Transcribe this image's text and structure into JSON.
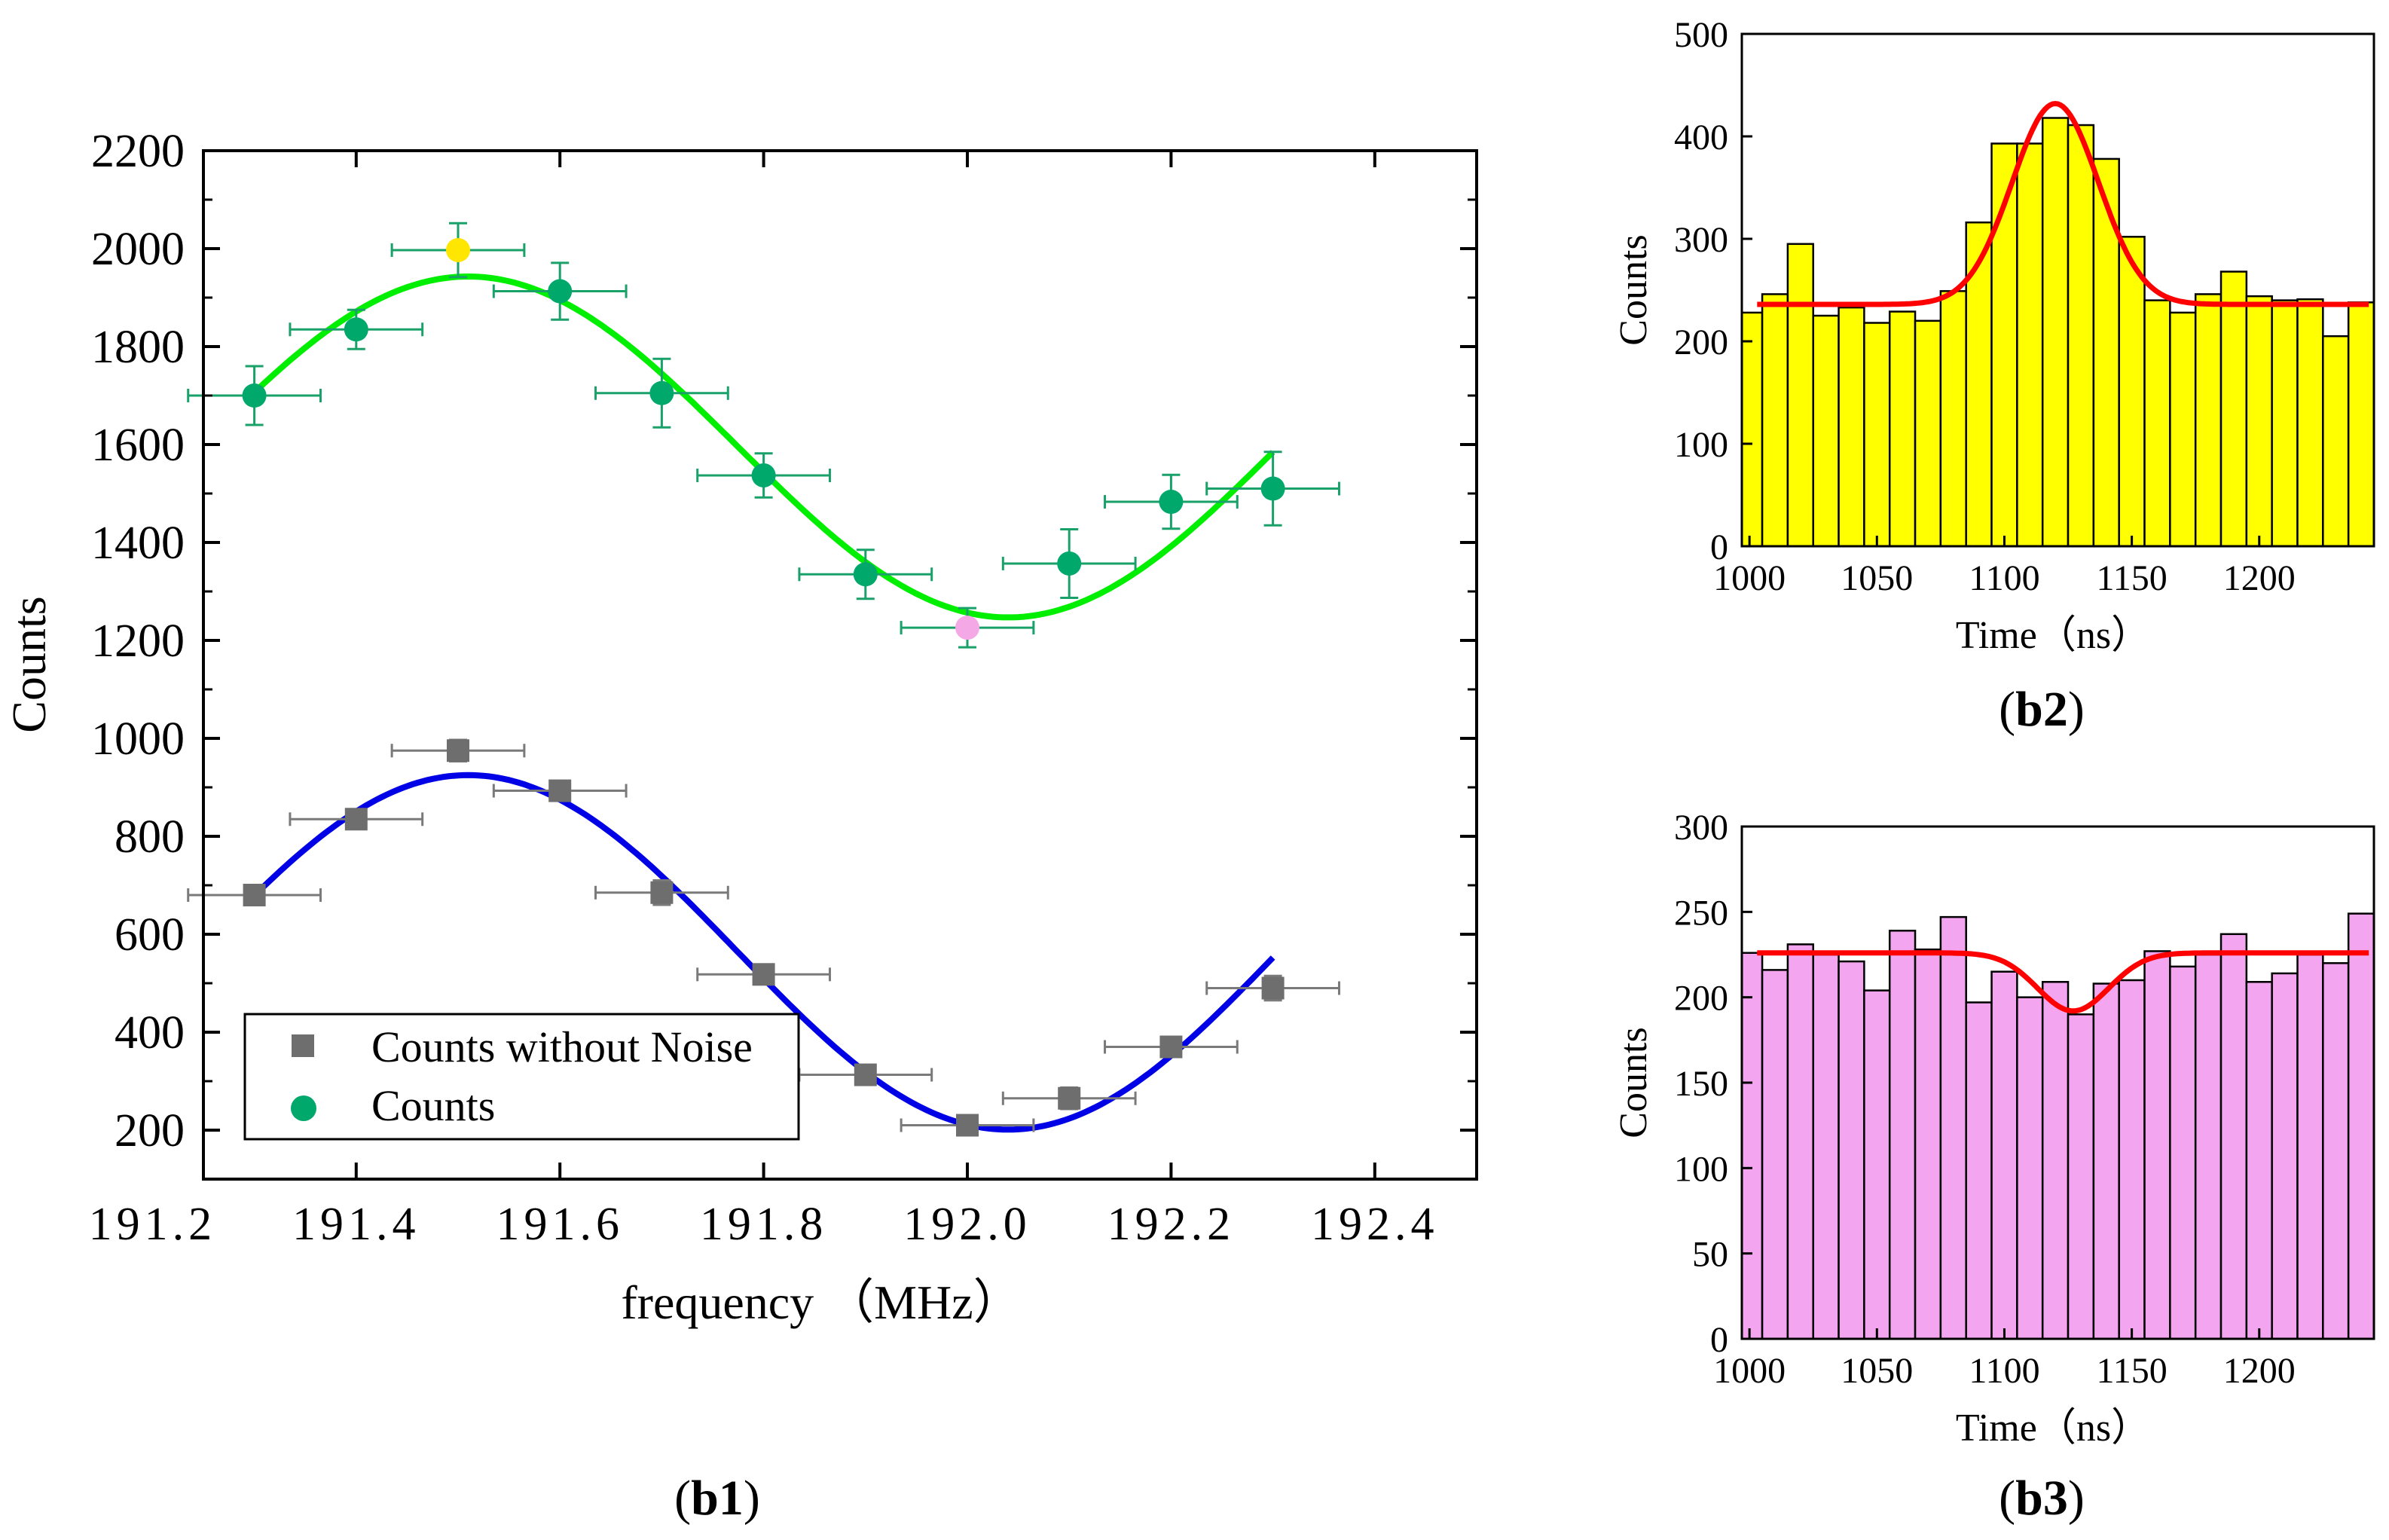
{
  "chart_data": [
    {
      "type": "scatter",
      "panel_label": {
        "open": "(",
        "bold": "b1",
        "close": ")"
      },
      "xlabel": "frequency （MHz）",
      "ylabel": "Counts",
      "xlim": [
        191.25,
        192.5
      ],
      "ylim": [
        100,
        2200
      ],
      "xticks": [
        191.2,
        191.4,
        191.6,
        191.8,
        192.0,
        192.2,
        192.4
      ],
      "xtick_labels": [
        "191.2",
        "191.4",
        "191.6",
        "191.8",
        "192.0",
        "192.2",
        "192.4"
      ],
      "yticks": [
        200,
        400,
        600,
        800,
        1000,
        1200,
        1400,
        1600,
        1800,
        2000,
        2200
      ],
      "ytick_labels": [
        "200",
        "400",
        "600",
        "800",
        "1000",
        "1200",
        "1400",
        "1600",
        "1800",
        "2000",
        "2200"
      ],
      "grid": false,
      "legend": "bottom-left",
      "series": [
        {
          "name": "Counts without Noise",
          "marker": "square",
          "color": "#6e6e6e",
          "x": [
            191.3,
            191.4,
            191.5,
            191.6,
            191.7,
            191.8,
            191.9,
            192.0,
            192.1,
            192.2,
            192.3
          ],
          "y": [
            680,
            835,
            975,
            893,
            685,
            518,
            313,
            210,
            265,
            370,
            490
          ],
          "xerr": 0.065,
          "yerr": [
            15,
            15,
            22,
            18,
            25,
            20,
            18,
            15,
            22,
            18,
            25
          ]
        },
        {
          "name": "Counts",
          "marker": "circle",
          "color": "#00a86b",
          "x": [
            191.3,
            191.4,
            191.5,
            191.6,
            191.7,
            191.8,
            191.9,
            192.0,
            192.1,
            192.2,
            192.3
          ],
          "y": [
            1700,
            1835,
            1997,
            1913,
            1705,
            1537,
            1335,
            1226,
            1357,
            1483,
            1510
          ],
          "xerr": 0.065,
          "yerr": [
            60,
            40,
            55,
            58,
            70,
            45,
            50,
            40,
            70,
            55,
            75
          ],
          "highlight": {
            "2": "#ffe600",
            "7": "#f5a8e6"
          }
        }
      ],
      "fits": [
        {
          "color": "#00ee00",
          "x_start": 191.3,
          "x_end": 192.3,
          "amplitude": 348,
          "offset": 1595,
          "period": 1.06,
          "peak_x": 191.51
        },
        {
          "color": "#0000e6",
          "x_start": 191.3,
          "x_end": 192.3,
          "amplitude": 362,
          "offset": 563,
          "period": 1.06,
          "peak_x": 191.51
        }
      ]
    },
    {
      "type": "bar",
      "panel_label": {
        "open": "(",
        "bold": "b2",
        "close": ")"
      },
      "xlabel": "Time（ns）",
      "ylabel": "Counts",
      "xlim": [
        997,
        1245
      ],
      "ylim": [
        0,
        500
      ],
      "xticks": [
        1000,
        1050,
        1100,
        1150,
        1200
      ],
      "xtick_labels": [
        "1000",
        "1050",
        "1100",
        "1150",
        "1200"
      ],
      "yticks": [
        0,
        100,
        200,
        300,
        400,
        500
      ],
      "ytick_labels": [
        "0",
        "100",
        "200",
        "300",
        "400",
        "500"
      ],
      "bar_color": "#ffff00",
      "bin_width": 10,
      "x": [
        1000,
        1010,
        1020,
        1030,
        1040,
        1050,
        1060,
        1070,
        1080,
        1090,
        1100,
        1110,
        1120,
        1130,
        1140,
        1150,
        1160,
        1170,
        1180,
        1190,
        1200,
        1210,
        1220,
        1230,
        1240
      ],
      "values": [
        228,
        246,
        295,
        225,
        233,
        218,
        229,
        220,
        249,
        316,
        393,
        393,
        418,
        411,
        378,
        302,
        240,
        228,
        246,
        268,
        244,
        240,
        241,
        205,
        238
      ],
      "fit": {
        "color": "#ff0000",
        "baseline": 236,
        "amplitude": 196,
        "center": 1120,
        "sigma": 17,
        "x_start": 1003,
        "x_end": 1243
      }
    },
    {
      "type": "bar",
      "panel_label": {
        "open": "(",
        "bold": "b3",
        "close": ")"
      },
      "xlabel": "Time（ns）",
      "ylabel": "Counts",
      "xlim": [
        997,
        1245
      ],
      "ylim": [
        0,
        300
      ],
      "xticks": [
        1000,
        1050,
        1100,
        1150,
        1200
      ],
      "xtick_labels": [
        "1000",
        "1050",
        "1100",
        "1150",
        "1200"
      ],
      "yticks": [
        0,
        50,
        100,
        150,
        200,
        250,
        300
      ],
      "ytick_labels": [
        "0",
        "50",
        "100",
        "150",
        "200",
        "250",
        "300"
      ],
      "bar_color": "#f3a5ef",
      "bin_width": 10,
      "x": [
        1000,
        1010,
        1020,
        1030,
        1040,
        1050,
        1060,
        1070,
        1080,
        1090,
        1100,
        1110,
        1120,
        1130,
        1140,
        1150,
        1160,
        1170,
        1180,
        1190,
        1200,
        1210,
        1220,
        1230,
        1240
      ],
      "values": [
        226,
        216,
        231,
        225,
        221,
        204,
        239,
        228,
        247,
        197,
        215,
        200,
        209,
        190,
        208,
        210,
        227,
        218,
        225,
        237,
        209,
        214,
        225,
        220,
        249
      ],
      "fit": {
        "color": "#ff0000",
        "baseline": 226,
        "amplitude": -34,
        "center": 1127,
        "sigma": 14,
        "x_start": 1003,
        "x_end": 1243
      }
    }
  ]
}
